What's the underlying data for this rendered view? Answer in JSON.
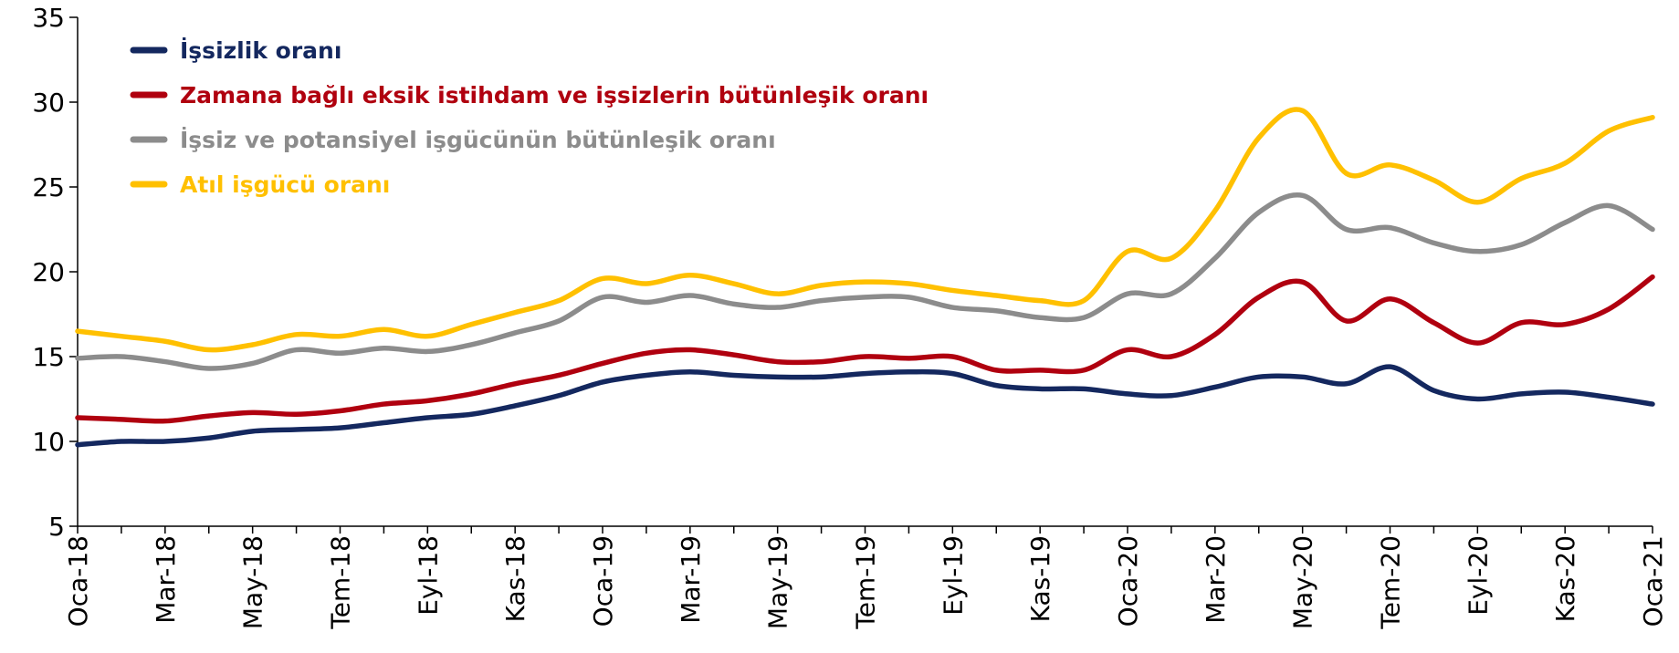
{
  "chart_data": {
    "type": "line",
    "categories": [
      "Oca-18",
      null,
      "Mar-18",
      null,
      "May-18",
      null,
      "Tem-18",
      null,
      "Eyl-18",
      null,
      "Kas-18",
      null,
      "Oca-19",
      null,
      "Mar-19",
      null,
      "May-19",
      null,
      "Tem-19",
      null,
      "Eyl-19",
      null,
      "Kas-19",
      null,
      "Oca-20",
      null,
      "Mar-20",
      null,
      "May-20",
      null,
      "Tem-20",
      null,
      "Eyl-20",
      null,
      "Kas-20",
      null,
      "Oca-21"
    ],
    "series": [
      {
        "name": "İşsizlik oranı",
        "color": "#14285f",
        "values": [
          9.8,
          10.0,
          10.0,
          10.2,
          10.6,
          10.7,
          10.8,
          11.1,
          11.4,
          11.6,
          12.1,
          12.7,
          13.5,
          13.9,
          14.1,
          13.9,
          13.8,
          13.8,
          14.0,
          14.1,
          14.0,
          13.3,
          13.1,
          13.1,
          12.8,
          12.7,
          13.2,
          13.8,
          13.8,
          13.4,
          14.4,
          13.0,
          12.5,
          12.8,
          12.9,
          12.6,
          12.2
        ]
      },
      {
        "name": "Zamana bağlı eksik istihdam ve işsizlerin bütünleşik oranı",
        "color": "#b0000f",
        "values": [
          11.4,
          11.3,
          11.2,
          11.5,
          11.7,
          11.6,
          11.8,
          12.2,
          12.4,
          12.8,
          13.4,
          13.9,
          14.6,
          15.2,
          15.4,
          15.1,
          14.7,
          14.7,
          15.0,
          14.9,
          15.0,
          14.2,
          14.2,
          14.2,
          15.4,
          15.0,
          16.3,
          18.5,
          19.4,
          17.1,
          18.4,
          17.0,
          15.8,
          17.0,
          16.9,
          17.8,
          19.7
        ]
      },
      {
        "name": "İşsiz ve potansiyel işgücünün bütünleşik oranı",
        "color": "#8c8c8c",
        "values": [
          14.9,
          15.0,
          14.7,
          14.3,
          14.6,
          15.4,
          15.2,
          15.5,
          15.3,
          15.7,
          16.4,
          17.1,
          18.5,
          18.2,
          18.6,
          18.1,
          17.9,
          18.3,
          18.5,
          18.5,
          17.9,
          17.7,
          17.3,
          17.3,
          18.7,
          18.7,
          20.8,
          23.5,
          24.5,
          22.5,
          22.6,
          21.7,
          21.2,
          21.6,
          22.9,
          23.9,
          22.5
        ]
      },
      {
        "name": "Atıl işgücü oranı",
        "color": "#ffc000",
        "values": [
          16.5,
          16.2,
          15.9,
          15.4,
          15.7,
          16.3,
          16.2,
          16.6,
          16.2,
          16.9,
          17.6,
          18.3,
          19.6,
          19.3,
          19.8,
          19.3,
          18.7,
          19.2,
          19.4,
          19.3,
          18.9,
          18.6,
          18.3,
          18.3,
          21.2,
          20.8,
          23.6,
          27.9,
          29.5,
          25.8,
          26.3,
          25.4,
          24.1,
          25.5,
          26.4,
          28.3,
          29.1
        ]
      }
    ],
    "ylim": [
      5,
      35
    ],
    "yticks": [
      5,
      10,
      15,
      20,
      25,
      30,
      35
    ],
    "grid": false,
    "legend": "top-left"
  }
}
